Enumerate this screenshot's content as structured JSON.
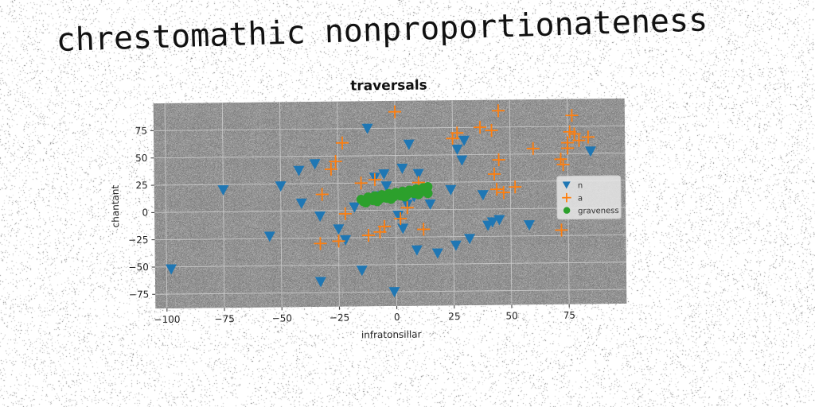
{
  "figure": {
    "title": "chrestomathic nonproportionateness"
  },
  "chart_data": {
    "type": "scatter",
    "title": "traversals",
    "xlabel": "infratonsillar",
    "ylabel": "chantant",
    "xlim": [
      -105,
      100
    ],
    "ylim": [
      -88,
      100
    ],
    "xticks": [
      -100,
      -75,
      -50,
      -25,
      0,
      25,
      50,
      75
    ],
    "yticks": [
      -75,
      -50,
      -25,
      0,
      25,
      50,
      75
    ],
    "xtick_labels": [
      "−100",
      "−75",
      "−50",
      "−25",
      "0",
      "25",
      "50",
      "75"
    ],
    "ytick_labels": [
      "−75",
      "−50",
      "−25",
      "0",
      "25",
      "50",
      "75"
    ],
    "grid": true,
    "background": "#808080",
    "legend": "right",
    "series": [
      {
        "name": "n",
        "marker": "triangle-down",
        "color": "#1f77b4",
        "points": [
          [
            -98,
            -52
          ],
          [
            -75,
            20
          ],
          [
            -55,
            -23
          ],
          [
            -50,
            23
          ],
          [
            -42,
            37
          ],
          [
            -41,
            7
          ],
          [
            -35,
            43
          ],
          [
            -33,
            -5
          ],
          [
            -33,
            -65
          ],
          [
            -25,
            -17
          ],
          [
            -22,
            -27
          ],
          [
            -18,
            3
          ],
          [
            -15,
            -55
          ],
          [
            -12,
            75
          ],
          [
            -9,
            30
          ],
          [
            -8,
            13
          ],
          [
            -5,
            33
          ],
          [
            -4,
            22
          ],
          [
            -1,
            -75
          ],
          [
            1,
            -5
          ],
          [
            3,
            38
          ],
          [
            3,
            -17
          ],
          [
            5,
            5
          ],
          [
            6,
            60
          ],
          [
            8,
            12
          ],
          [
            9,
            -37
          ],
          [
            10,
            33
          ],
          [
            15,
            5
          ],
          [
            18,
            -40
          ],
          [
            24,
            18
          ],
          [
            26,
            -33
          ],
          [
            27,
            55
          ],
          [
            29,
            45
          ],
          [
            30,
            63
          ],
          [
            32,
            -27
          ],
          [
            38,
            13
          ],
          [
            40,
            -15
          ],
          [
            42,
            -12
          ],
          [
            45,
            -10
          ],
          [
            58,
            -15
          ],
          [
            85,
            52
          ]
        ]
      },
      {
        "name": "a",
        "marker": "plus",
        "color": "#ff7f0e",
        "points": [
          [
            -33,
            -30
          ],
          [
            -32,
            15
          ],
          [
            -28,
            38
          ],
          [
            -26,
            45
          ],
          [
            -25,
            -28
          ],
          [
            -23,
            62
          ],
          [
            -22,
            -3
          ],
          [
            -15,
            25
          ],
          [
            -12,
            -23
          ],
          [
            -9,
            28
          ],
          [
            -7,
            -20
          ],
          [
            -5,
            -15
          ],
          [
            0,
            90
          ],
          [
            2,
            -8
          ],
          [
            5,
            2
          ],
          [
            10,
            25
          ],
          [
            12,
            -18
          ],
          [
            25,
            65
          ],
          [
            27,
            70
          ],
          [
            37,
            75
          ],
          [
            42,
            72
          ],
          [
            43,
            32
          ],
          [
            44,
            18
          ],
          [
            45,
            45
          ],
          [
            45,
            90
          ],
          [
            47,
            15
          ],
          [
            52,
            20
          ],
          [
            60,
            55
          ],
          [
            72,
            -20
          ],
          [
            72,
            45
          ],
          [
            73,
            40
          ],
          [
            75,
            55
          ],
          [
            75,
            60
          ],
          [
            76,
            70
          ],
          [
            77,
            85
          ],
          [
            78,
            68
          ],
          [
            80,
            62
          ],
          [
            84,
            65
          ]
        ]
      },
      {
        "name": "graveness",
        "marker": "circle",
        "color": "#2ca02c",
        "points": [
          [
            -15,
            10
          ],
          [
            -12,
            12
          ],
          [
            -9,
            13
          ],
          [
            -6,
            14
          ],
          [
            -3,
            15
          ],
          [
            0,
            16
          ],
          [
            3,
            17
          ],
          [
            6,
            18
          ],
          [
            9,
            19
          ],
          [
            12,
            20
          ],
          [
            14,
            21
          ],
          [
            -14,
            8
          ],
          [
            -10,
            9
          ],
          [
            -7,
            10
          ],
          [
            -4,
            11
          ],
          [
            -1,
            12
          ],
          [
            2,
            13
          ],
          [
            5,
            14
          ],
          [
            8,
            15
          ],
          [
            11,
            16
          ],
          [
            13,
            17
          ],
          [
            -13,
            7
          ],
          [
            -8,
            8
          ],
          [
            -2,
            10
          ],
          [
            4,
            12
          ],
          [
            10,
            14
          ],
          [
            14,
            15
          ]
        ]
      }
    ]
  }
}
